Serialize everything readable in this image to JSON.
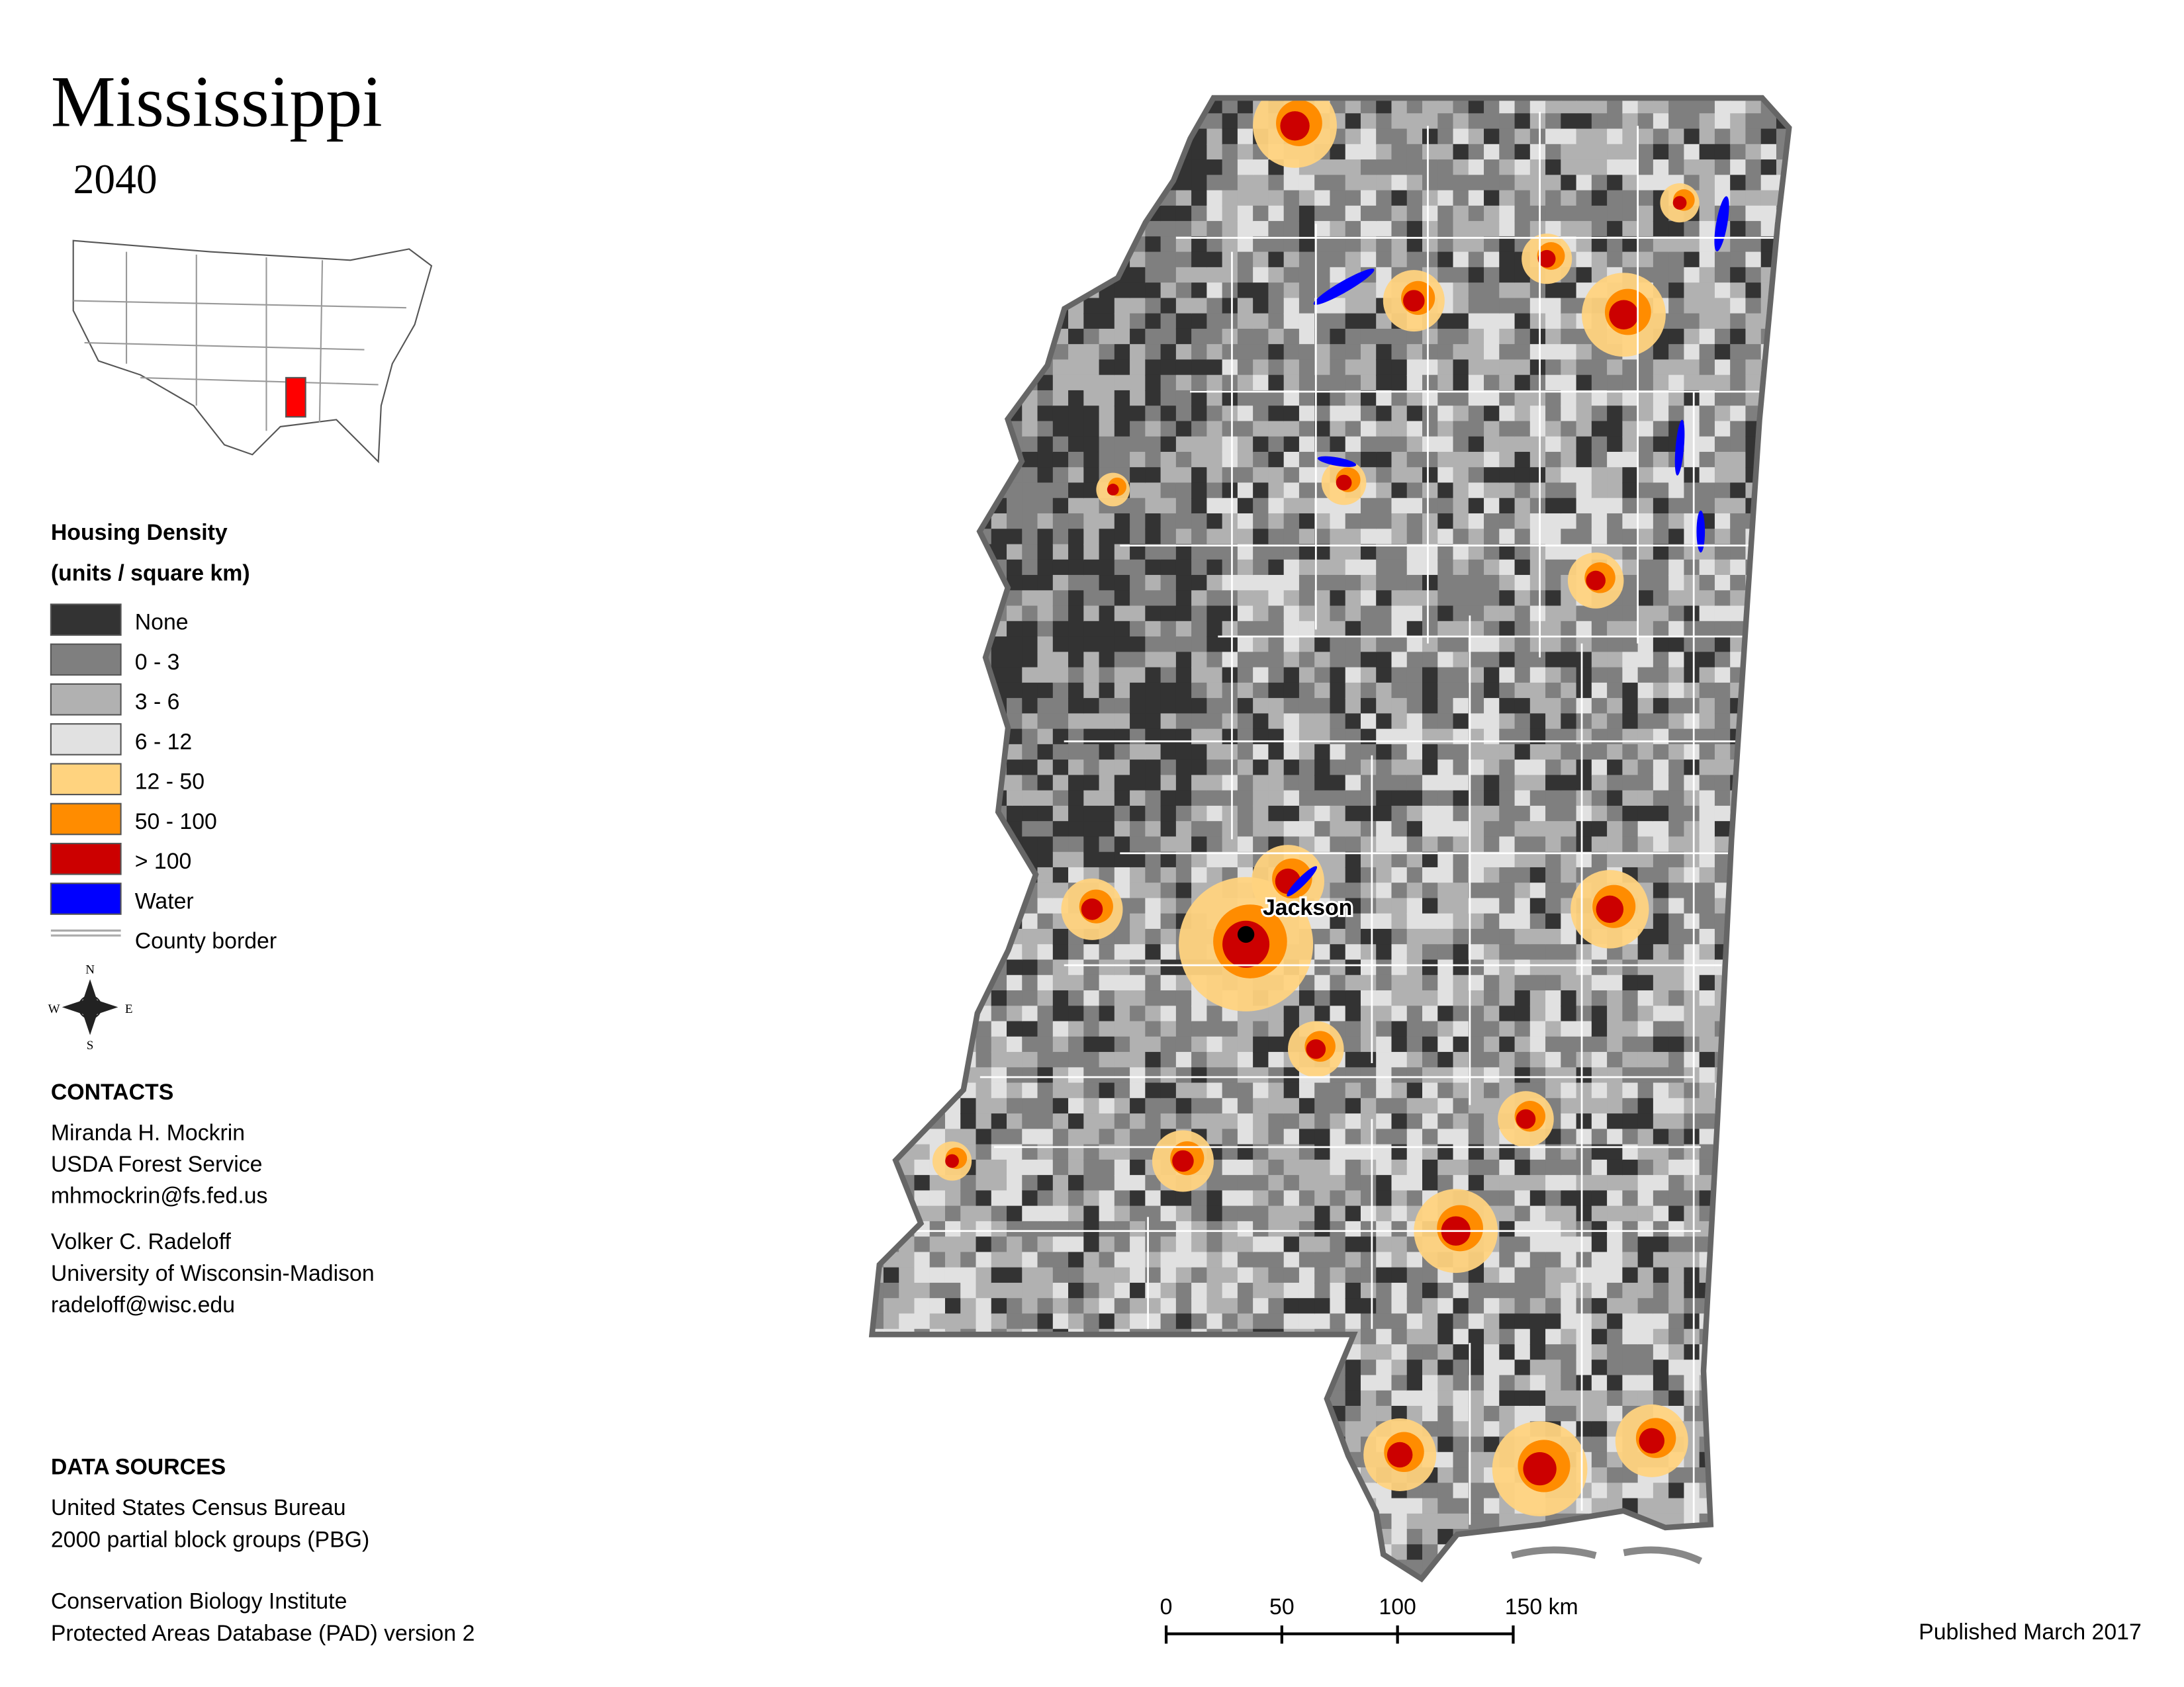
{
  "header": {
    "title": "Mississippi",
    "subtitle": "2040"
  },
  "legend": {
    "title": "Housing Density",
    "subtitle": "(units / square km)",
    "items": [
      {
        "label": "None",
        "color": "#333333"
      },
      {
        "label": "0 - 3",
        "color": "#7f7f7f"
      },
      {
        "label": "3 - 6",
        "color": "#b1b1b1"
      },
      {
        "label": "6 - 12",
        "color": "#e1e1e1"
      },
      {
        "label": "12 - 50",
        "color": "#ffd37f"
      },
      {
        "label": "50 - 100",
        "color": "#ff8c00"
      },
      {
        "label": "> 100",
        "color": "#cc0000"
      },
      {
        "label": "Water",
        "color": "#0000ff"
      },
      {
        "label": "County border",
        "color": "#ffffff"
      }
    ]
  },
  "compass": {
    "north": "N",
    "south": "S",
    "east": "E",
    "west": "W"
  },
  "contacts": {
    "title": "CONTACTS",
    "people": [
      [
        "Miranda H. Mockrin",
        "USDA Forest Service",
        "mhmockrin@fs.fed.us"
      ],
      [
        "Volker C. Radeloff",
        "University of Wisconsin-Madison",
        "radeloff@wisc.edu"
      ]
    ]
  },
  "data_sources": {
    "title": "DATA SOURCES",
    "sources": [
      [
        "United States Census Bureau",
        "2000 partial block groups (PBG)"
      ],
      [
        "Conservation Biology Institute",
        "Protected Areas Database (PAD) version 2"
      ]
    ]
  },
  "map": {
    "city": "Jackson"
  },
  "scale_bar": {
    "ticks": [
      0,
      50,
      100,
      {
        "value": 150,
        "label": "150 km"
      }
    ]
  },
  "footer": {
    "published": "Published March 2017"
  }
}
